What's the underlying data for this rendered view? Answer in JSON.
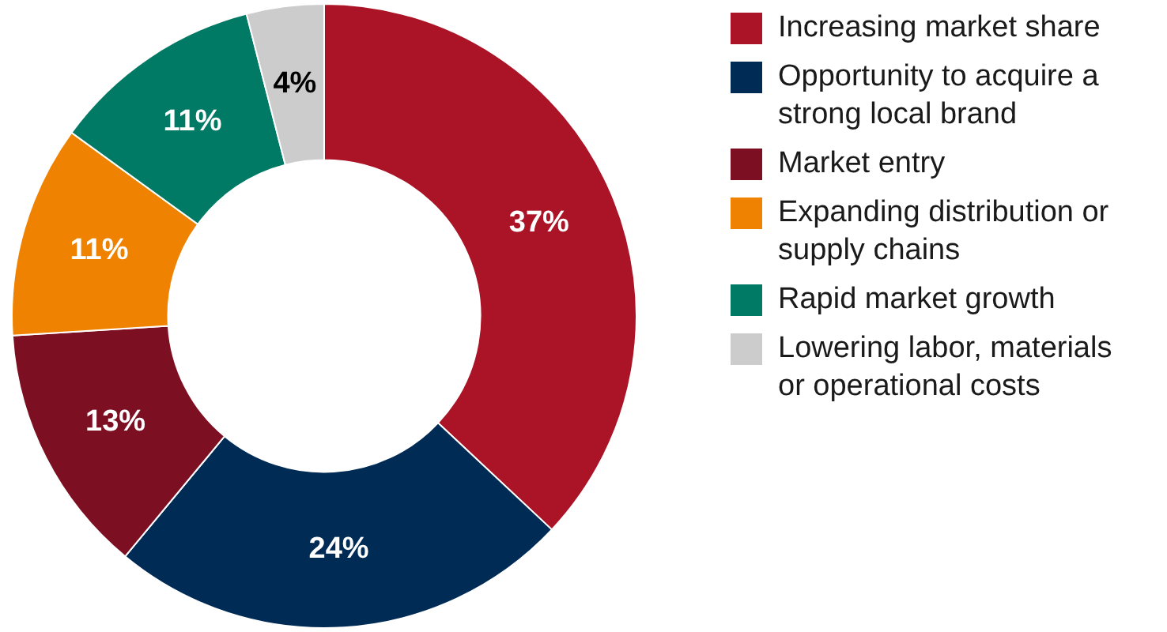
{
  "chart_data": {
    "type": "donut",
    "categories": [
      "Increasing market share",
      "Opportunity to acquire a strong local brand",
      "Market entry",
      "Expanding distribution or supply chains",
      "Rapid market growth",
      "Lowering labor, materials or operational costs"
    ],
    "values": [
      37,
      24,
      13,
      11,
      11,
      4
    ],
    "colors": [
      "#ab1326",
      "#002b55",
      "#7d0f22",
      "#ef8200",
      "#007a64",
      "#cccccc"
    ],
    "value_labels": [
      "37%",
      "24%",
      "13%",
      "11%",
      "11%",
      "4%"
    ],
    "legend": "right"
  }
}
